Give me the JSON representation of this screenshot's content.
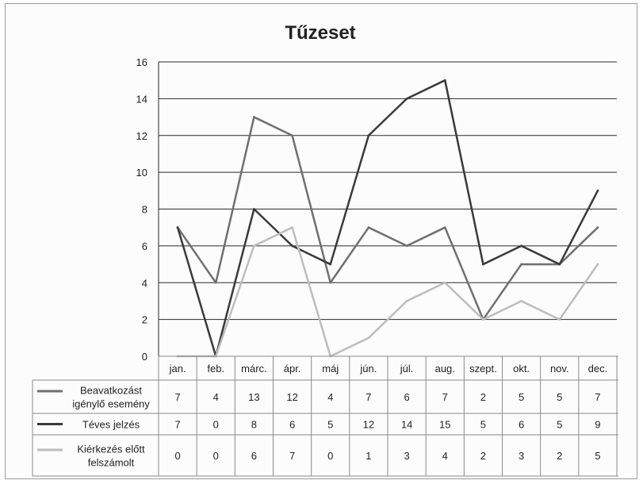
{
  "chart_data": {
    "type": "line",
    "title": "Tűzeset",
    "categories": [
      "jan.",
      "feb.",
      "márc.",
      "ápr.",
      "máj",
      "jún.",
      "júl.",
      "aug.",
      "szept.",
      "okt.",
      "nov.",
      "dec."
    ],
    "ylim": [
      0,
      16
    ],
    "yticks": [
      0,
      2,
      4,
      6,
      8,
      10,
      12,
      14,
      16
    ],
    "grid": true,
    "legend": "data-table-below",
    "series": [
      {
        "name_lines": [
          "Beavatkozást",
          "igénylő esemény"
        ],
        "color": "#707070",
        "values": [
          7,
          4,
          13,
          12,
          4,
          7,
          6,
          7,
          2,
          5,
          5,
          7
        ]
      },
      {
        "name_lines": [
          "Téves jelzés"
        ],
        "color": "#3a3a3a",
        "values": [
          7,
          0,
          8,
          6,
          5,
          12,
          14,
          15,
          5,
          6,
          5,
          9
        ]
      },
      {
        "name_lines": [
          "Kiérkezés előtt",
          "felszámolt"
        ],
        "color": "#bdbdbd",
        "values": [
          0,
          0,
          6,
          7,
          0,
          1,
          3,
          4,
          2,
          3,
          2,
          5
        ]
      }
    ]
  }
}
